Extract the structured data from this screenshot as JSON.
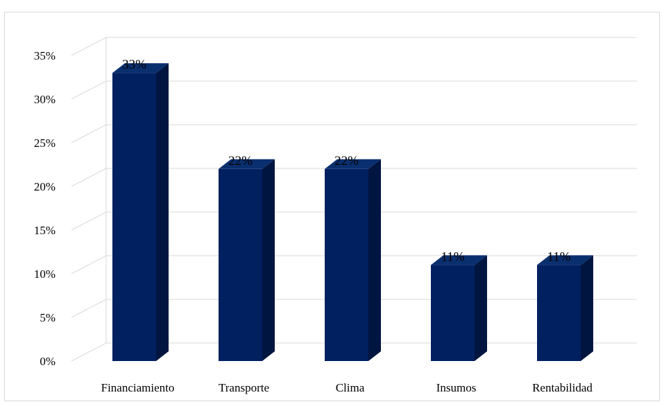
{
  "chart_data": {
    "type": "bar",
    "style": "3d-column",
    "categories": [
      "Financiamiento",
      "Transporte",
      "Clima",
      "Insumos",
      "Rentabilidad"
    ],
    "values": [
      33,
      22,
      22,
      11,
      11
    ],
    "data_labels": [
      "33%",
      "22%",
      "22%",
      "11%",
      "11%"
    ],
    "y_ticks": [
      "0%",
      "5%",
      "10%",
      "15%",
      "20%",
      "25%",
      "30%",
      "35%"
    ],
    "ylim": [
      0,
      35
    ],
    "y_unit": "%",
    "grid": true,
    "legend": "none",
    "title": "",
    "xlabel": "",
    "ylabel": "",
    "colors": {
      "bar_front": "#002060",
      "bar_side": "#001540",
      "bar_top": "#0a2f6e",
      "grid": "#d9d9d9"
    }
  }
}
